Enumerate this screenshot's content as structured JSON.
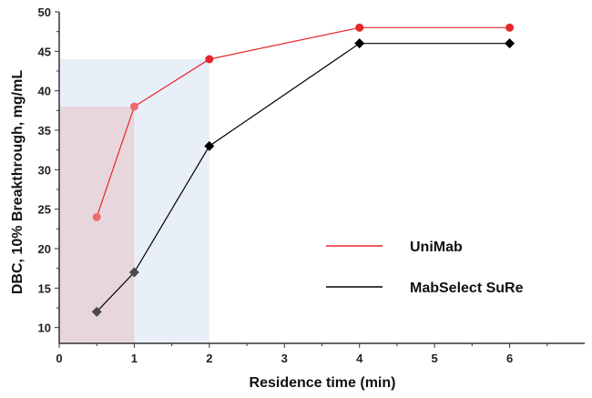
{
  "chart_data": {
    "type": "line",
    "xlabel": "Residence time (min)",
    "ylabel": "DBC, 10% Breakthrough, mg/mL",
    "xlim": [
      0,
      7
    ],
    "ylim": [
      8,
      50
    ],
    "xticks": [
      0,
      1,
      2,
      3,
      4,
      5,
      6
    ],
    "yticks": [
      10,
      15,
      20,
      25,
      30,
      35,
      40,
      45,
      50
    ],
    "grid": false,
    "legend_position": "right",
    "series": [
      {
        "name": "UniMab",
        "color": "#e8262a",
        "marker": "circle",
        "x": [
          0.5,
          1,
          2,
          4,
          6
        ],
        "y": [
          24,
          38,
          44,
          48,
          48
        ]
      },
      {
        "name": "MabSelect SuRe",
        "color": "#000000",
        "marker": "diamond",
        "x": [
          0.5,
          1,
          2,
          4,
          6
        ],
        "y": [
          12,
          17,
          33,
          46,
          46
        ]
      }
    ],
    "shaded_regions": [
      {
        "x": [
          0,
          2
        ],
        "y": [
          8,
          44
        ],
        "color": "#e8eff8"
      },
      {
        "x": [
          0,
          1
        ],
        "y": [
          8,
          38
        ],
        "color": "#e7d7dc"
      }
    ]
  }
}
